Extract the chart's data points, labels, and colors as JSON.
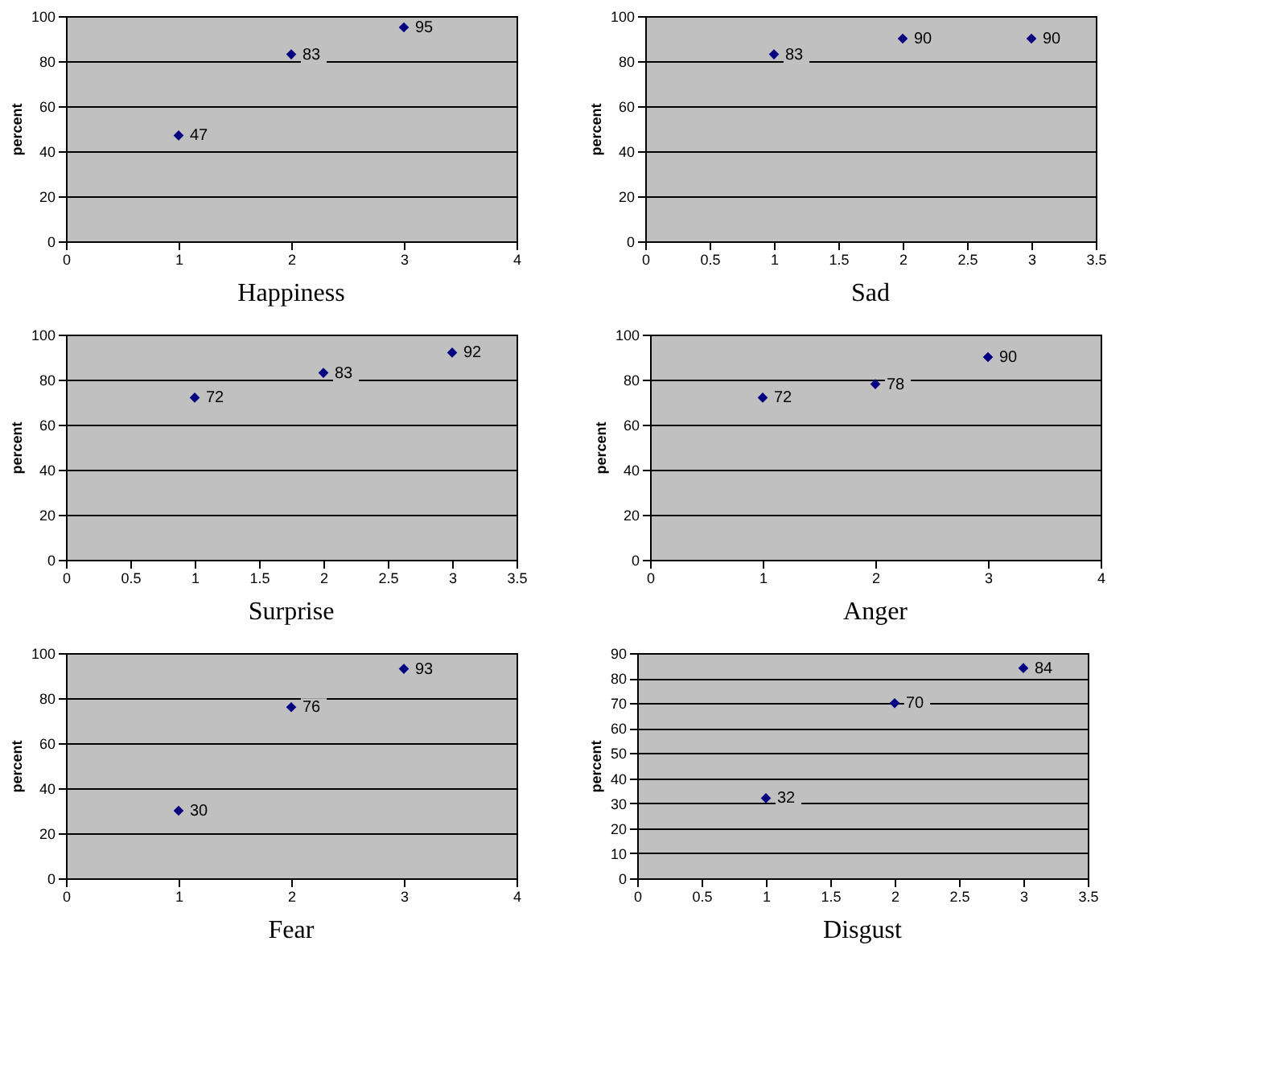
{
  "chart_data": [
    {
      "type": "scatter",
      "title": "Happiness",
      "ylabel": "percent",
      "x": [
        1,
        2,
        3
      ],
      "series": [
        {
          "color": "#000080",
          "values": [
            47,
            83,
            95
          ]
        }
      ],
      "data_labels": true,
      "xlim": [
        0,
        4
      ],
      "xticks": [
        0,
        1,
        2,
        3,
        4
      ],
      "ylim": [
        0,
        100
      ],
      "yticks": [
        0,
        20,
        40,
        60,
        80,
        100
      ],
      "grid": "y",
      "marker": "diamond"
    },
    {
      "type": "scatter",
      "title": "Sad",
      "ylabel": "percent",
      "x": [
        1,
        2,
        3
      ],
      "series": [
        {
          "color": "#000080",
          "values": [
            83,
            90,
            90
          ]
        }
      ],
      "data_labels": true,
      "xlim": [
        0,
        3.5
      ],
      "xticks": [
        0,
        0.5,
        1,
        1.5,
        2,
        2.5,
        3,
        3.5
      ],
      "ylim": [
        0,
        100
      ],
      "yticks": [
        0,
        20,
        40,
        60,
        80,
        100
      ],
      "grid": "y",
      "marker": "diamond"
    },
    {
      "type": "scatter",
      "title": "Surprise",
      "ylabel": "percent",
      "x": [
        1,
        2,
        3
      ],
      "series": [
        {
          "color": "#000080",
          "values": [
            72,
            83,
            92
          ]
        }
      ],
      "data_labels": true,
      "xlim": [
        0,
        3.5
      ],
      "xticks": [
        0,
        0.5,
        1,
        1.5,
        2,
        2.5,
        3,
        3.5
      ],
      "ylim": [
        0,
        100
      ],
      "yticks": [
        0,
        20,
        40,
        60,
        80,
        100
      ],
      "grid": "y",
      "marker": "diamond"
    },
    {
      "type": "scatter",
      "title": "Anger",
      "ylabel": "percent",
      "x": [
        1,
        2,
        3
      ],
      "series": [
        {
          "color": "#000080",
          "values": [
            72,
            78,
            90
          ]
        }
      ],
      "data_labels": true,
      "xlim": [
        0,
        4
      ],
      "xticks": [
        0,
        1,
        2,
        3,
        4
      ],
      "ylim": [
        0,
        100
      ],
      "yticks": [
        0,
        20,
        40,
        60,
        80,
        100
      ],
      "grid": "y",
      "marker": "diamond"
    },
    {
      "type": "scatter",
      "title": "Fear",
      "ylabel": "percent",
      "x": [
        1,
        2,
        3
      ],
      "series": [
        {
          "color": "#000080",
          "values": [
            30,
            76,
            93
          ]
        }
      ],
      "data_labels": true,
      "xlim": [
        0,
        4
      ],
      "xticks": [
        0,
        1,
        2,
        3,
        4
      ],
      "ylim": [
        0,
        100
      ],
      "yticks": [
        0,
        20,
        40,
        60,
        80,
        100
      ],
      "grid": "y",
      "marker": "diamond"
    },
    {
      "type": "scatter",
      "title": "Disgust",
      "ylabel": "percent",
      "x": [
        1,
        2,
        3
      ],
      "series": [
        {
          "color": "#000080",
          "values": [
            32,
            70,
            84
          ]
        }
      ],
      "data_labels": true,
      "xlim": [
        0,
        3.5
      ],
      "xticks": [
        0,
        0.5,
        1,
        1.5,
        2,
        2.5,
        3,
        3.5
      ],
      "ylim": [
        0,
        90
      ],
      "yticks": [
        0,
        10,
        20,
        30,
        40,
        50,
        60,
        70,
        80,
        90
      ],
      "grid": "y",
      "marker": "diamond"
    }
  ]
}
